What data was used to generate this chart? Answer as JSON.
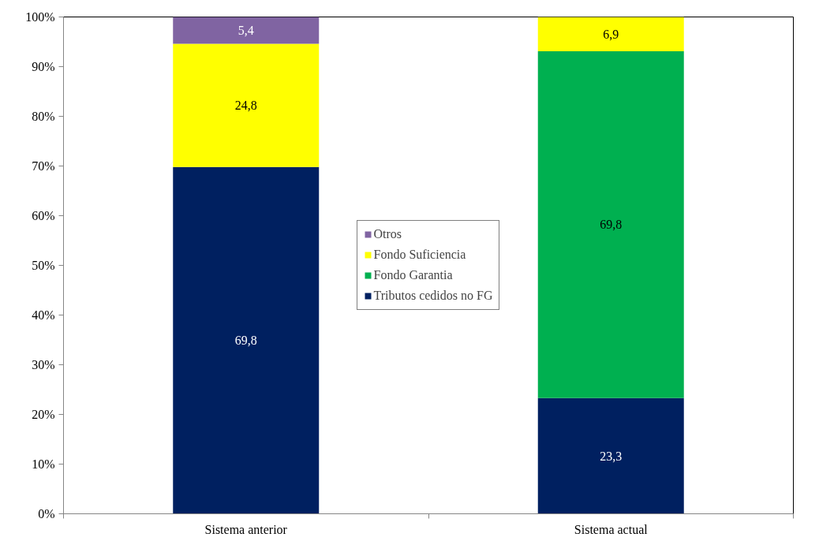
{
  "chart_data": {
    "type": "bar",
    "stacked": true,
    "categories": [
      "Sistema anterior",
      "Sistema actual"
    ],
    "series": [
      {
        "name": "Tributos cedidos no FG",
        "color": "#002060",
        "values": [
          69.8,
          23.3
        ],
        "value_labels": [
          "69,8",
          "23,3"
        ]
      },
      {
        "name": "Fondo Garantia",
        "color": "#00b050",
        "values": [
          null,
          69.8
        ],
        "value_labels": [
          null,
          "69,8"
        ]
      },
      {
        "name": "Fondo Suficiencia",
        "color": "#ffff00",
        "values": [
          24.8,
          6.9
        ],
        "value_labels": [
          "24,8",
          "6,9"
        ]
      },
      {
        "name": "Otros",
        "color": "#8064a2",
        "values": [
          5.4,
          null
        ],
        "value_labels": [
          "5,4",
          null
        ]
      }
    ],
    "ylim": [
      0,
      100
    ],
    "yticks": [
      {
        "value": 0,
        "label": "0%"
      },
      {
        "value": 10,
        "label": "10%"
      },
      {
        "value": 20,
        "label": "20%"
      },
      {
        "value": 30,
        "label": "30%"
      },
      {
        "value": 40,
        "label": "40%"
      },
      {
        "value": 50,
        "label": "50%"
      },
      {
        "value": 60,
        "label": "60%"
      },
      {
        "value": 70,
        "label": "70%"
      },
      {
        "value": 80,
        "label": "80%"
      },
      {
        "value": 90,
        "label": "90%"
      },
      {
        "value": 100,
        "label": "100%"
      }
    ],
    "legend": "center"
  }
}
